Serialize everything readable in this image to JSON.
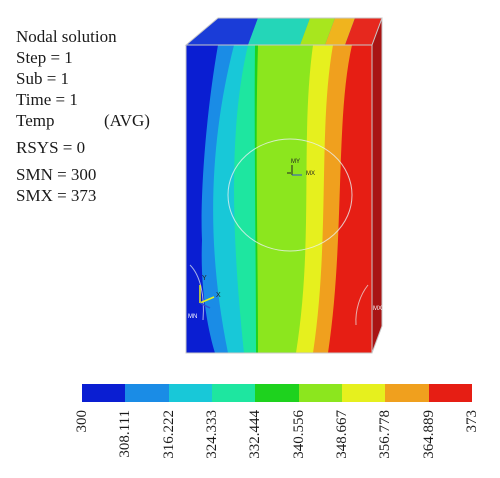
{
  "info": {
    "title": "Nodal solution",
    "step": "Step = 1",
    "sub": "Sub = 1",
    "time": "Time = 1",
    "temp": "Temp",
    "avg": "(AVG)",
    "rsys": "RSYS = 0",
    "smn": "SMN = 300",
    "smx": "SMX = 373"
  },
  "model": {
    "markers": {
      "center": "MX",
      "center_top": "MY",
      "triad_x": "X",
      "triad_y": "Y",
      "corner_left": "MN",
      "corner_right": "MX"
    }
  },
  "legend": {
    "colors": [
      "#0a1ed2",
      "#1a8ce6",
      "#18c8d8",
      "#1ee6a0",
      "#1ed21e",
      "#8ce61e",
      "#e6f01e",
      "#f0a01e",
      "#e61e14"
    ],
    "ticks": [
      "300",
      "308.111",
      "316.222",
      "324.333",
      "332.444",
      "340.556",
      "348.667",
      "356.778",
      "364.889",
      "373"
    ]
  }
}
